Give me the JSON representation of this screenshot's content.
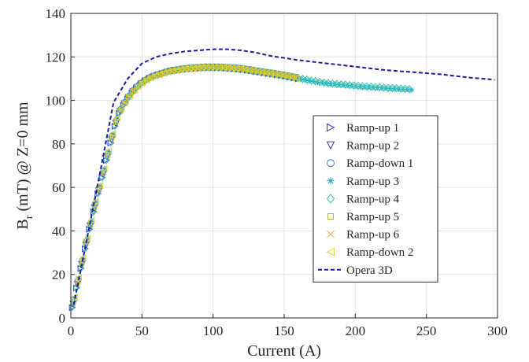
{
  "chart_data": {
    "type": "scatter",
    "title": "",
    "xlabel": "Current (A)",
    "ylabel": {
      "main": "B",
      "sub": "r",
      "rest": " (mT) @ Z=0 mm"
    },
    "xlim": [
      0,
      300
    ],
    "ylim": [
      0,
      140
    ],
    "xticks": [
      "0",
      "50",
      "100",
      "150",
      "200",
      "250",
      "300"
    ],
    "yticks": [
      "0",
      "20",
      "40",
      "60",
      "80",
      "100",
      "120",
      "140"
    ],
    "grid": true,
    "legend_position": "center-right",
    "series": [
      {
        "name": "Ramp-up 1",
        "marker": "triangle-right",
        "color": "#3333cc",
        "x_max": 160
      },
      {
        "name": "Ramp-up 2",
        "marker": "triangle-down",
        "color": "#4a3aa8",
        "x_max": 160
      },
      {
        "name": "Ramp-down 1",
        "marker": "circle",
        "color": "#2f7fd6",
        "x_max": 160
      },
      {
        "name": "Ramp-up 3",
        "marker": "asterisk",
        "color": "#1aa8c8",
        "x_max": 240
      },
      {
        "name": "Ramp-up 4",
        "marker": "diamond",
        "color": "#2ec4a8",
        "x_max": 240
      },
      {
        "name": "Ramp-up 5",
        "marker": "square",
        "color": "#9cbf2a",
        "x_max": 160
      },
      {
        "name": "Ramp-up 6",
        "marker": "x",
        "color": "#e8b84a",
        "x_max": 160
      },
      {
        "name": "Ramp-down 2",
        "marker": "triangle-left",
        "color": "#e6d020",
        "x_max": 160
      },
      {
        "name": "Opera 3D",
        "marker": "dashed-line",
        "color": "#1a1aa8",
        "x": [
          2,
          10,
          20,
          30,
          40,
          50,
          60,
          70,
          80,
          90,
          100,
          110,
          120,
          130,
          140,
          150,
          160,
          180,
          200,
          220,
          240,
          260,
          280,
          298
        ],
        "y": [
          6,
          32,
          65,
          99,
          110,
          117,
          120,
          121.5,
          122.5,
          123,
          123.5,
          123.5,
          123,
          122,
          120.5,
          119.5,
          118.5,
          117,
          115.5,
          114,
          113,
          112,
          110.5,
          109.5
        ]
      }
    ],
    "measured_curve": {
      "x": [
        1,
        3,
        5,
        7,
        9,
        11,
        13,
        15,
        18,
        21,
        24,
        27,
        30,
        33,
        36,
        40,
        44,
        48,
        52,
        56,
        60,
        65,
        70,
        75,
        80,
        85,
        90,
        95,
        100,
        105,
        110,
        115,
        120,
        125,
        130,
        135,
        140,
        145,
        150,
        155,
        160,
        165,
        170,
        175,
        180,
        185,
        190,
        195,
        200,
        205,
        210,
        215,
        220,
        225,
        230,
        235,
        240
      ],
      "y": [
        5,
        11,
        17,
        23,
        29,
        35,
        41,
        46,
        55,
        62,
        70,
        78,
        86,
        93,
        97,
        101,
        104.5,
        107,
        109,
        110.5,
        111.5,
        112.5,
        113.5,
        114,
        114.5,
        114.8,
        115,
        115.2,
        115.2,
        115.2,
        115,
        114.8,
        114.5,
        114,
        113.5,
        113,
        112.5,
        112,
        111.5,
        110.8,
        110.2,
        109.6,
        109,
        108.5,
        108,
        107.7,
        107.4,
        107.1,
        106.8,
        106.5,
        106.3,
        106.1,
        105.9,
        105.7,
        105.5,
        105.3,
        105.1
      ]
    }
  }
}
